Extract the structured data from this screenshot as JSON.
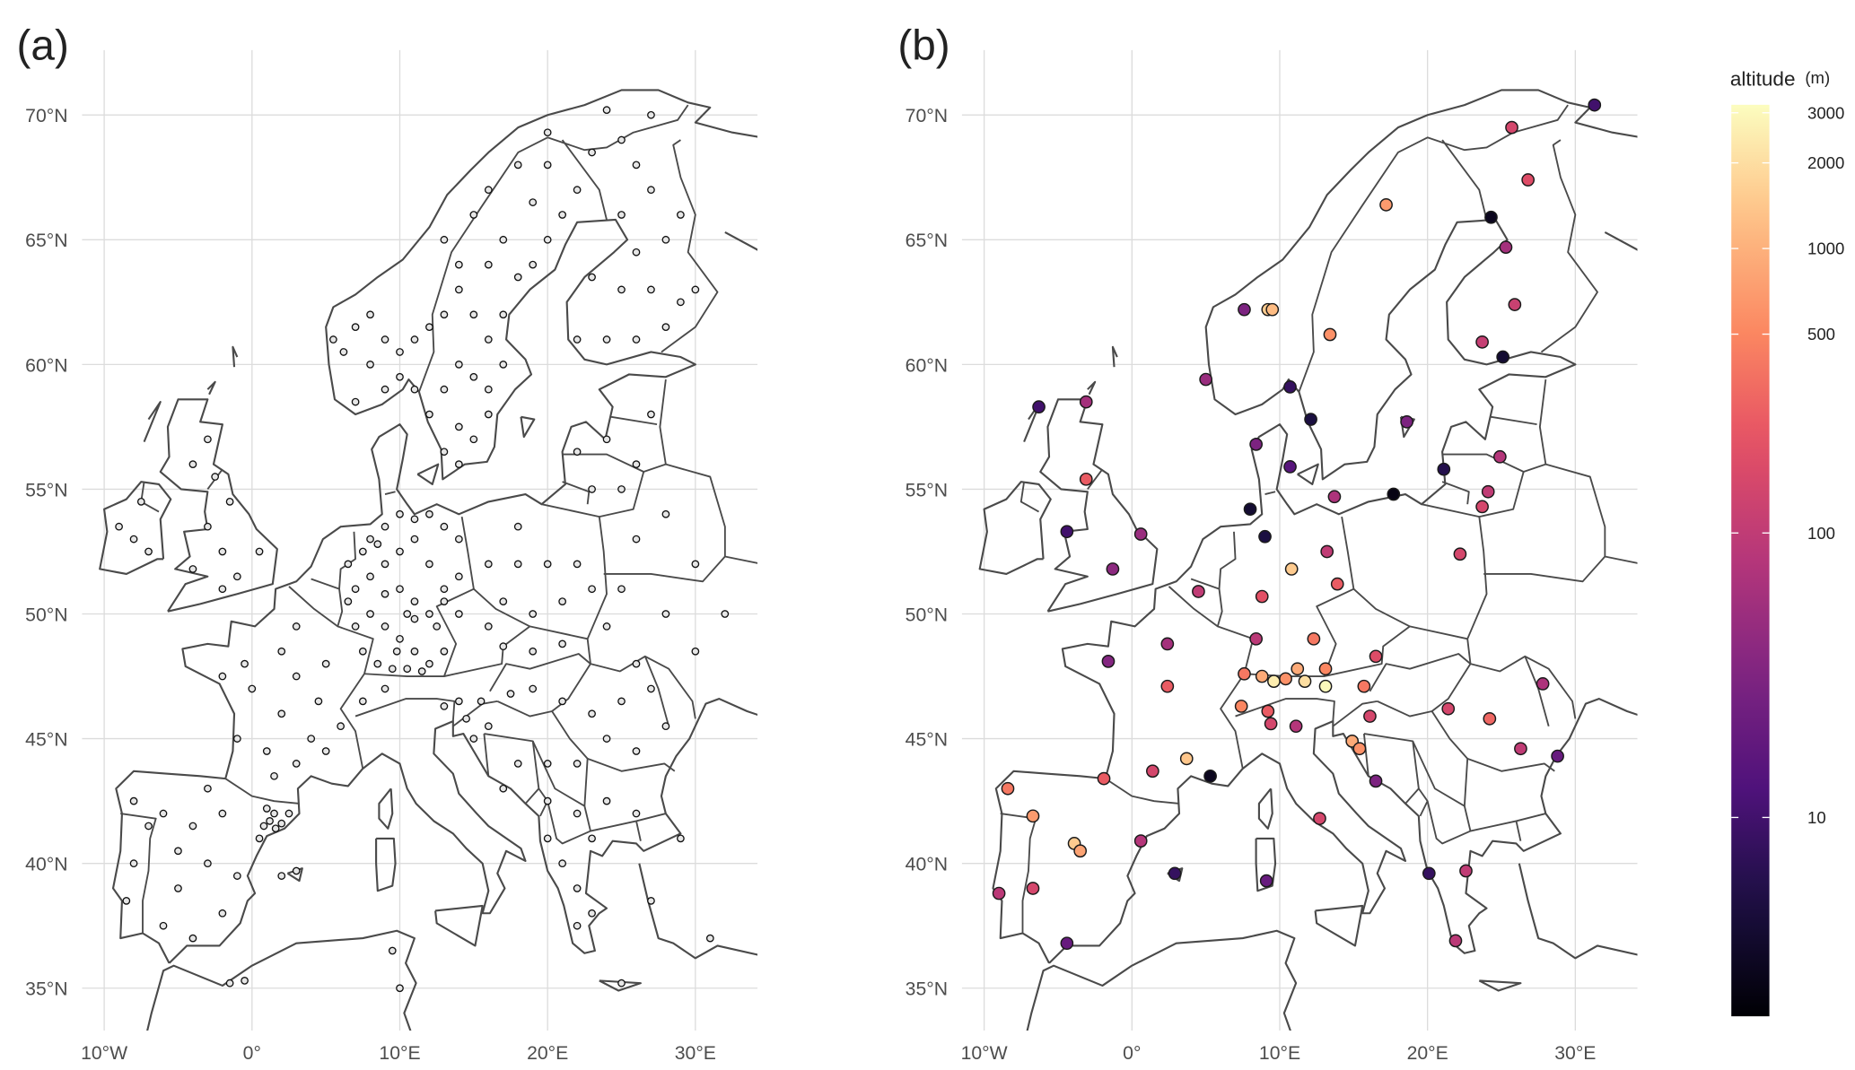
{
  "axes": {
    "xlim": [
      -11.5,
      34.2
    ],
    "ylim": [
      33.3,
      72.6
    ],
    "xticks": [
      {
        "value": -10,
        "label": "10°W"
      },
      {
        "value": 0,
        "label": "0°"
      },
      {
        "value": 10,
        "label": "10°E"
      },
      {
        "value": 20,
        "label": "20°E"
      },
      {
        "value": 30,
        "label": "30°E"
      }
    ],
    "yticks": [
      {
        "value": 35,
        "label": "35°N"
      },
      {
        "value": 40,
        "label": "40°N"
      },
      {
        "value": 45,
        "label": "45°N"
      },
      {
        "value": 50,
        "label": "50°N"
      },
      {
        "value": 55,
        "label": "55°N"
      },
      {
        "value": 60,
        "label": "60°N"
      },
      {
        "value": 65,
        "label": "65°N"
      },
      {
        "value": 70,
        "label": "70°N"
      }
    ]
  },
  "panels": [
    {
      "label": "(a)",
      "stations": {
        "lon": [
          5.5,
          6.2,
          7,
          8,
          9,
          10,
          11,
          12,
          13,
          14,
          15,
          16,
          17,
          18,
          19,
          20,
          21,
          22,
          18,
          16,
          15,
          13,
          14,
          16,
          17,
          19,
          20,
          23,
          25,
          27,
          24,
          20,
          14,
          15,
          16,
          17,
          13,
          12,
          14,
          15,
          16,
          13,
          14,
          7,
          9,
          10,
          11,
          8,
          22,
          24,
          26,
          28,
          29,
          27,
          25,
          23,
          26,
          28,
          25,
          27,
          26,
          29,
          30,
          22,
          24,
          26,
          23,
          25,
          27,
          -1,
          -2,
          -3,
          -1.5,
          -2.5,
          -3,
          -4,
          0.5,
          -4,
          -2,
          -8,
          -7,
          -9,
          -7.5,
          0,
          2,
          3,
          4,
          1,
          -1,
          2,
          5,
          3,
          -0.5,
          1.5,
          4.5,
          -2,
          3,
          5,
          -8,
          -6,
          -4,
          -3,
          -5,
          -6,
          -4,
          -2,
          -1,
          -8,
          -8.5,
          -7,
          -2,
          -5,
          -3,
          0.8,
          1.2,
          1.5,
          2,
          1,
          2.5,
          1.6,
          0.5,
          7,
          8,
          9,
          10,
          11,
          12,
          13,
          14,
          8,
          9,
          10,
          11,
          12,
          13,
          7.5,
          8.5,
          9.5,
          10.5,
          11.5,
          6.5,
          7,
          8,
          9,
          10,
          11,
          12,
          13,
          14,
          10,
          11,
          12,
          9,
          10.5,
          13,
          7.5,
          6.5,
          8.5,
          12.5,
          11,
          9.8,
          16,
          18,
          20,
          22,
          17,
          19,
          21,
          23,
          18,
          16,
          14,
          17,
          19,
          21,
          26,
          28,
          30,
          25,
          28,
          30,
          32,
          26,
          24,
          19,
          21,
          17.5,
          23,
          25,
          27,
          24,
          26,
          28,
          22,
          20,
          18,
          16,
          15,
          14.5,
          20,
          22,
          24,
          26,
          23,
          21,
          22,
          23,
          22,
          25,
          20,
          14,
          13,
          15.5,
          17,
          9,
          7.5,
          6,
          29,
          27,
          31,
          9.5,
          -0.5,
          10,
          2,
          3,
          -1.5
        ],
        "lat": [
          61,
          60.5,
          61.5,
          62,
          61,
          60.5,
          61,
          61.5,
          62,
          63,
          62,
          61,
          62,
          63.5,
          64,
          65,
          66,
          67,
          68,
          67,
          66,
          65,
          64,
          64,
          65,
          66.5,
          68,
          68.5,
          69,
          70,
          70.2,
          69.3,
          60,
          59.5,
          59,
          60,
          59,
          58,
          57.5,
          57,
          58,
          56.5,
          56,
          58.5,
          59,
          59.5,
          59,
          60,
          61,
          61,
          61,
          61.5,
          62.5,
          63,
          63,
          63.5,
          64.5,
          65,
          66,
          67,
          68,
          66,
          63,
          56.5,
          57,
          56,
          55,
          55,
          58,
          51.5,
          52.5,
          53.5,
          54.5,
          55.5,
          57,
          56,
          52.5,
          51.8,
          51,
          53,
          52.5,
          53.5,
          54.5,
          47,
          46,
          47.5,
          45,
          44.5,
          45,
          48.5,
          48,
          49.5,
          48,
          43.5,
          46.5,
          47.5,
          44,
          44.5,
          42.5,
          42,
          41.5,
          40,
          39,
          37.5,
          37,
          38,
          39.5,
          40,
          38.5,
          41.5,
          42,
          40.5,
          43,
          41.5,
          41.7,
          42,
          41.6,
          42.2,
          42,
          41.4,
          41,
          51,
          51.5,
          52,
          52.5,
          53,
          52,
          51,
          51.5,
          50,
          49.5,
          49,
          48.5,
          48,
          48.5,
          48.5,
          48,
          47.8,
          47.8,
          47.7,
          50.5,
          49.5,
          53,
          53.5,
          54,
          53.8,
          54,
          53.5,
          53,
          51,
          50.5,
          50,
          50.8,
          50,
          50.5,
          52.5,
          52,
          52.8,
          49.5,
          49.8,
          48.5,
          52,
          52,
          52,
          52,
          50.5,
          50,
          50.5,
          51,
          53.5,
          49.5,
          50,
          48.7,
          48.5,
          48.8,
          53,
          54,
          52,
          51,
          50,
          48.5,
          50,
          48,
          49.5,
          47,
          46.5,
          46.8,
          46,
          46.5,
          47,
          45,
          44.5,
          45.5,
          44,
          44,
          44,
          45.5,
          45,
          45.8,
          42.5,
          42,
          42.5,
          42,
          41,
          40,
          39,
          38,
          37.5,
          35.2,
          41,
          46.5,
          46.3,
          46.5,
          43,
          47,
          46.5,
          45.5,
          41,
          38.5,
          37,
          36.5,
          35.3,
          35,
          39.5,
          39.7,
          35.2
        ]
      }
    },
    {
      "label": "(b)",
      "stations": {
        "lon": [
          31.3,
          25.7,
          26.8,
          17.2,
          24.3,
          25.3,
          25.9,
          23.7,
          25.1,
          7.6,
          9.2,
          9.5,
          13.4,
          5.0,
          10.7,
          12.1,
          18.6,
          8.4,
          10.7,
          21.1,
          24.9,
          24.1,
          23.7,
          17.7,
          13.7,
          8.0,
          9.0,
          13.2,
          22.2,
          10.8,
          13.9,
          4.5,
          8.8,
          12.3,
          8.4,
          2.4,
          -1.6,
          16.5,
          7.6,
          8.8,
          9.6,
          10.4,
          11.2,
          11.7,
          13.1,
          13.1,
          15.7,
          2.4,
          7.4,
          9.2,
          9.4,
          11.1,
          16.1,
          14.9,
          15.4,
          16.5,
          3.7,
          5.3,
          1.4,
          -1.9,
          -8.4,
          -6.7,
          -3.9,
          -3.5,
          0.6,
          12.7,
          2.9,
          9.1,
          -9.0,
          -6.7,
          -4.4,
          20.1,
          22.6,
          21.9,
          21.4,
          24.2,
          26.3,
          27.8,
          28.8,
          -6.3,
          -3.1,
          -3.1,
          -4.4,
          0.6,
          -1.3
        ],
        "lat": [
          70.4,
          69.5,
          67.4,
          66.4,
          65.9,
          64.7,
          62.4,
          60.9,
          60.3,
          62.2,
          62.2,
          62.2,
          61.2,
          59.4,
          59.1,
          57.8,
          57.7,
          56.8,
          55.9,
          55.8,
          56.3,
          54.9,
          54.3,
          54.8,
          54.7,
          54.2,
          53.1,
          52.5,
          52.4,
          51.8,
          51.2,
          50.9,
          50.7,
          49.0,
          49.0,
          48.8,
          48.1,
          48.3,
          47.6,
          47.5,
          47.3,
          47.4,
          47.8,
          47.3,
          47.8,
          47.1,
          47.1,
          47.1,
          46.3,
          46.1,
          45.6,
          45.5,
          45.9,
          44.9,
          44.6,
          43.3,
          44.2,
          43.5,
          43.7,
          43.4,
          43.0,
          41.9,
          40.8,
          40.5,
          40.9,
          41.8,
          39.6,
          39.3,
          38.8,
          39.0,
          36.8,
          39.6,
          39.7,
          36.9,
          46.2,
          45.8,
          44.6,
          47.2,
          44.3,
          58.3,
          58.5,
          55.4,
          53.3,
          53.2,
          51.8
        ],
        "altitude": [
          10,
          150,
          180,
          700,
          3,
          60,
          120,
          110,
          4,
          30,
          1500,
          1200,
          600,
          50,
          8,
          5,
          30,
          30,
          15,
          6,
          80,
          100,
          150,
          2.5,
          70,
          4,
          5,
          100,
          150,
          1500,
          250,
          100,
          200,
          400,
          90,
          60,
          35,
          180,
          400,
          900,
          2500,
          600,
          900,
          2000,
          500,
          3000,
          400,
          250,
          500,
          250,
          150,
          80,
          150,
          900,
          600,
          30,
          1400,
          3,
          150,
          250,
          400,
          700,
          1500,
          800,
          80,
          150,
          8,
          20,
          90,
          150,
          20,
          8,
          100,
          90,
          150,
          300,
          100,
          70,
          20,
          10,
          60,
          250,
          10,
          50,
          40
        ]
      }
    }
  ],
  "legend": {
    "title": "altitude",
    "unit": "(m)",
    "log_scale": true,
    "colormap": "magma",
    "lim": [
      2,
      3200
    ],
    "ticks": [
      10,
      100,
      500,
      1000,
      2000,
      3000
    ]
  }
}
